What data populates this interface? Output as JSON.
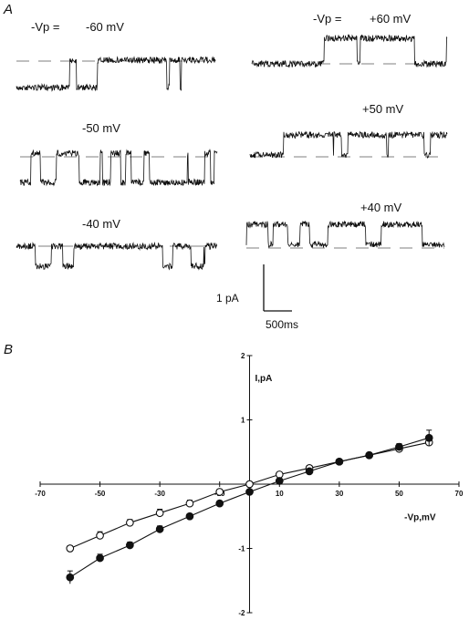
{
  "panel_a": {
    "label": "A",
    "left_column_prefix": "-Vp =",
    "right_column_prefix": "-Vp =",
    "left_traces": [
      "-60 mV",
      "-50 mV",
      "-40 mV"
    ],
    "right_traces": [
      "+60 mV",
      "+50 mV",
      "+40 mV"
    ],
    "scale_bar": {
      "current_label": "1 pA",
      "time_label": "500ms"
    }
  },
  "panel_b": {
    "label": "B"
  },
  "chart_data": {
    "type": "scatter",
    "title": "",
    "xlabel": "-Vp,mV",
    "ylabel": "I,pA",
    "xlim": [
      -70,
      70
    ],
    "ylim": [
      -2,
      2
    ],
    "x_ticks": [
      -70,
      -50,
      -30,
      -10,
      10,
      30,
      50,
      70
    ],
    "y_ticks": [
      -2,
      -1,
      1,
      2
    ],
    "grid": false,
    "series": [
      {
        "marker": "open-circle",
        "x": [
          -60,
          -50,
          -40,
          -30,
          -20,
          -10,
          0,
          10,
          20,
          30,
          40,
          50,
          60
        ],
        "y": [
          -1.0,
          -0.8,
          -0.6,
          -0.45,
          -0.3,
          -0.12,
          0.0,
          0.15,
          0.25,
          0.35,
          0.45,
          0.55,
          0.65
        ],
        "err": [
          0.04,
          0.06,
          0.05,
          0.06,
          0.05,
          0.04,
          0.03,
          0.03,
          0.04,
          0.04,
          0.04,
          0.05,
          0.06
        ]
      },
      {
        "marker": "filled-circle",
        "x": [
          -60,
          -50,
          -40,
          -30,
          -20,
          -10,
          0,
          10,
          20,
          30,
          40,
          50,
          60
        ],
        "y": [
          -1.45,
          -1.15,
          -0.95,
          -0.7,
          -0.5,
          -0.3,
          -0.12,
          0.05,
          0.2,
          0.35,
          0.45,
          0.58,
          0.72
        ],
        "err": [
          0.1,
          0.06,
          0.05,
          0.05,
          0.04,
          0.04,
          0.03,
          0.03,
          0.04,
          0.04,
          0.04,
          0.05,
          0.12
        ]
      }
    ]
  }
}
